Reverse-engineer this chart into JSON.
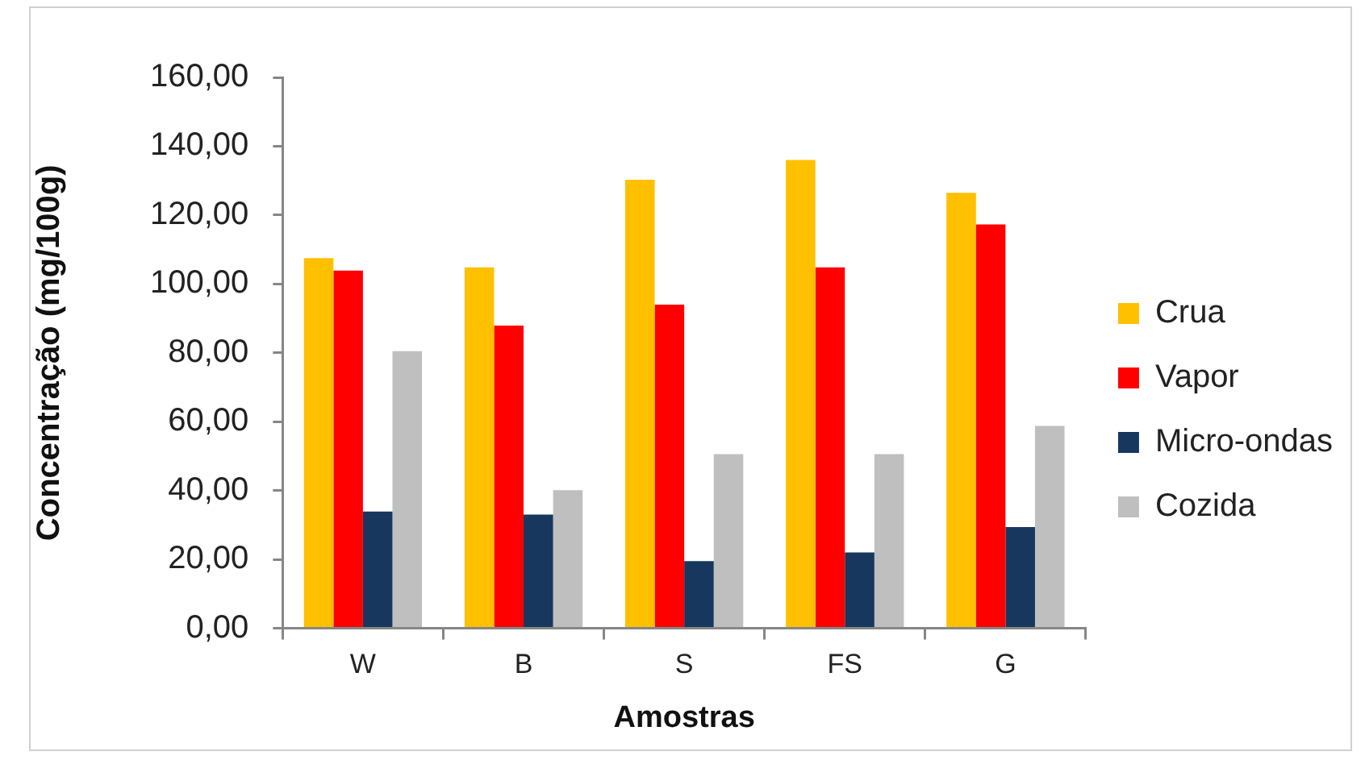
{
  "chart_data": {
    "type": "bar",
    "xlabel": "Amostras",
    "ylabel": "Concentração (mg/100g)",
    "categories": [
      "W",
      "B",
      "S",
      "FS",
      "G"
    ],
    "series": [
      {
        "name": "Crua",
        "color": "#ffc000",
        "values": [
          107.5,
          104.8,
          130.3,
          136.0,
          126.5
        ]
      },
      {
        "name": "Vapor",
        "color": "#ff0000",
        "values": [
          103.9,
          87.9,
          94.0,
          104.8,
          117.3
        ]
      },
      {
        "name": "Micro-ondas",
        "color": "#17375e",
        "values": [
          33.9,
          33.0,
          19.5,
          22.0,
          29.4
        ]
      },
      {
        "name": "Cozida",
        "color": "#bfbfbf",
        "values": [
          80.5,
          40.1,
          50.6,
          50.6,
          58.8
        ]
      }
    ],
    "ylim": [
      0,
      160
    ],
    "yticks": [
      {
        "value": 0,
        "label": "0,00"
      },
      {
        "value": 20,
        "label": "20,00"
      },
      {
        "value": 40,
        "label": "40,00"
      },
      {
        "value": 60,
        "label": "60,00"
      },
      {
        "value": 80,
        "label": "80,00"
      },
      {
        "value": 100,
        "label": "100,00"
      },
      {
        "value": 120,
        "label": "120,00"
      },
      {
        "value": 140,
        "label": "140,00"
      },
      {
        "value": 160,
        "label": "160,00"
      }
    ],
    "grid": false,
    "legend": "right"
  }
}
